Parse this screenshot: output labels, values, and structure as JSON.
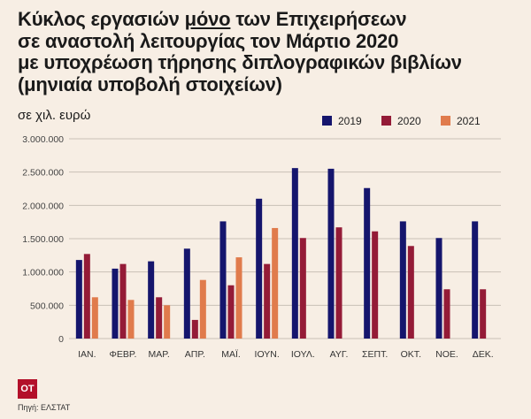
{
  "header": {
    "title_l1_a": "Κύκλος εργασιών ",
    "title_l1_u": "μόνο",
    "title_l1_b": " των Επιχειρήσεων",
    "title_l2": "σε αναστολή λειτουργίας τον Μάρτιο 2020",
    "title_l3": "με υποχρέωση τήρησης διπλογραφικών βιβλίων",
    "title_l4": "(μηνιαία υποβολή στοιχείων)",
    "subtitle": "σε χιλ. ευρώ"
  },
  "footer": {
    "logo": "OT",
    "source": "Πηγή: ΕΛΣΤΑΤ"
  },
  "colors": {
    "background": "#f7eee4",
    "s2019": "#15156d",
    "s2020": "#941b37",
    "s2021": "#e07b4c",
    "grid": "#c9c0b6",
    "logo": "#b3102a"
  },
  "chart_data": {
    "type": "bar",
    "categories": [
      "ΙΑΝ.",
      "ΦΕΒΡ.",
      "ΜΑΡ.",
      "ΑΠΡ.",
      "ΜΑΪ.",
      "ΙΟΥΝ.",
      "ΙΟΥΛ.",
      "ΑΥΓ.",
      "ΣΕΠΤ.",
      "ΟΚΤ.",
      "ΝΟΕ.",
      "ΔΕΚ."
    ],
    "series": [
      {
        "name": "2019",
        "values": [
          1180000,
          1050000,
          1160000,
          1350000,
          1760000,
          2100000,
          2560000,
          2550000,
          2260000,
          1760000,
          1510000,
          1760000
        ]
      },
      {
        "name": "2020",
        "values": [
          1270000,
          1120000,
          620000,
          280000,
          800000,
          1120000,
          1510000,
          1670000,
          1610000,
          1390000,
          740000,
          740000
        ]
      },
      {
        "name": "2021",
        "values": [
          620000,
          580000,
          500000,
          880000,
          1220000,
          1660000,
          null,
          null,
          null,
          null,
          null,
          null
        ]
      }
    ],
    "ylim": [
      0,
      3000000
    ],
    "yticks": [
      0,
      500000,
      1000000,
      1500000,
      2000000,
      2500000,
      3000000
    ],
    "ytick_labels": [
      "0",
      "500.000",
      "1.000.000",
      "1.500.000",
      "2.000.000",
      "2.500.000",
      "3.000.000"
    ],
    "grid": true,
    "legend_position": "top-right"
  }
}
